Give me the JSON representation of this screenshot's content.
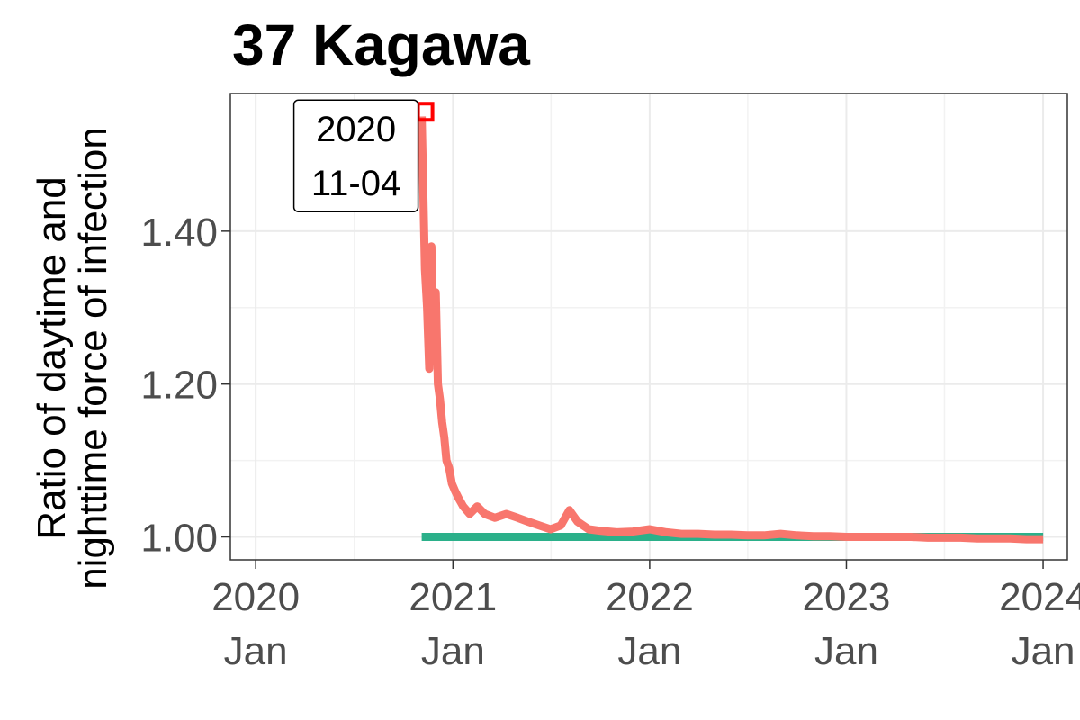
{
  "chart_data": {
    "type": "line",
    "title": "37 Kagawa",
    "xlabel": "",
    "ylabel_lines": [
      "Ratio of daytime and",
      "nighttime force of infection"
    ],
    "ylim": [
      0.97,
      1.58
    ],
    "xlim": [
      "2019-11-15",
      "2024-02-15"
    ],
    "grid": true,
    "legend": "none",
    "x_ticks": [
      {
        "date": "2020-01-01",
        "year": "2020",
        "month": "Jan"
      },
      {
        "date": "2021-01-01",
        "year": "2021",
        "month": "Jan"
      },
      {
        "date": "2022-01-01",
        "year": "2022",
        "month": "Jan"
      },
      {
        "date": "2023-01-01",
        "year": "2023",
        "month": "Jan"
      },
      {
        "date": "2024-01-01",
        "year": "2024",
        "month": "Jan"
      }
    ],
    "y_ticks": [
      {
        "value": 1.0,
        "label": "1.00"
      },
      {
        "value": 1.2,
        "label": "1.20"
      },
      {
        "value": 1.4,
        "label": "1.40"
      }
    ],
    "series": [
      {
        "color": "#f8766d",
        "x": [
          "2020-11-04",
          "2020-11-07",
          "2020-11-10",
          "2020-11-14",
          "2020-11-18",
          "2020-11-22",
          "2020-11-26",
          "2020-11-30",
          "2020-12-04",
          "2020-12-08",
          "2020-12-12",
          "2020-12-16",
          "2020-12-20",
          "2020-12-25",
          "2020-12-30",
          "2021-01-05",
          "2021-01-12",
          "2021-01-20",
          "2021-02-01",
          "2021-02-15",
          "2021-03-01",
          "2021-03-20",
          "2021-04-10",
          "2021-05-01",
          "2021-05-20",
          "2021-06-10",
          "2021-07-01",
          "2021-07-20",
          "2021-08-05",
          "2021-08-20",
          "2021-09-10",
          "2021-10-01",
          "2021-11-01",
          "2021-12-01",
          "2022-01-01",
          "2022-02-01",
          "2022-03-01",
          "2022-04-01",
          "2022-05-01",
          "2022-06-01",
          "2022-07-01",
          "2022-08-01",
          "2022-09-01",
          "2022-10-01",
          "2022-11-01",
          "2022-12-01",
          "2023-01-01",
          "2023-02-01",
          "2023-03-01",
          "2023-04-01",
          "2023-05-01",
          "2023-06-01",
          "2023-07-01",
          "2023-08-01",
          "2023-09-01",
          "2023-10-01",
          "2023-11-01",
          "2023-12-01",
          "2024-01-01"
        ],
        "y": [
          1.55,
          1.45,
          1.35,
          1.3,
          1.22,
          1.38,
          1.25,
          1.32,
          1.2,
          1.18,
          1.15,
          1.13,
          1.1,
          1.09,
          1.07,
          1.06,
          1.05,
          1.04,
          1.03,
          1.04,
          1.03,
          1.025,
          1.03,
          1.025,
          1.02,
          1.015,
          1.01,
          1.015,
          1.035,
          1.02,
          1.01,
          1.008,
          1.006,
          1.007,
          1.01,
          1.006,
          1.004,
          1.004,
          1.003,
          1.003,
          1.002,
          1.002,
          1.004,
          1.002,
          1.001,
          1.001,
          1.0,
          1.0,
          1.0,
          1.0,
          1.0,
          0.999,
          0.999,
          0.999,
          0.998,
          0.998,
          0.998,
          0.997,
          0.997
        ]
      },
      {
        "color": "#2bb08a",
        "x": [
          "2020-11-04",
          "2024-01-01"
        ],
        "y": [
          1.0,
          1.0
        ]
      }
    ],
    "annotation": {
      "lines": [
        "2020",
        "11-04"
      ],
      "date": "2020-11-04",
      "value": 1.555,
      "marker_color": "#ff0000"
    }
  }
}
